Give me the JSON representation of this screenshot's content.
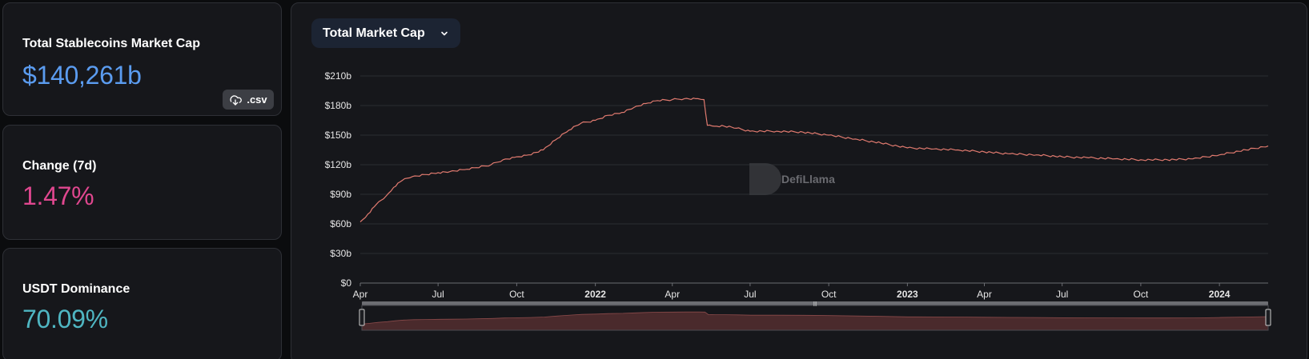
{
  "stats": {
    "market_cap": {
      "label": "Total Stablecoins Market Cap",
      "value": "$140,261b"
    },
    "change": {
      "label": "Change (7d)",
      "value": "1.47%"
    },
    "dominance": {
      "label": "USDT Dominance",
      "value": "70.09%"
    },
    "csv_button": {
      "label": ".csv",
      "icon": "download-cloud-icon"
    }
  },
  "chart_controls": {
    "metric_select": {
      "label": "Total Market Cap",
      "icon": "chevron-down-icon"
    }
  },
  "watermark": {
    "text": "DefiLlama"
  },
  "colors": {
    "market_cap_value": "#5b9cf0",
    "change_value": "#e0478f",
    "dominance_value": "#4fb6c2",
    "line": "#e07a6f",
    "brush_fill": "#4a2a2c"
  },
  "chart_data": {
    "type": "line",
    "title": "",
    "xlabel": "",
    "ylabel": "",
    "ylim": [
      0,
      210
    ],
    "y_ticks": [
      "$0",
      "$30b",
      "$60b",
      "$90b",
      "$120b",
      "$150b",
      "$180b",
      "$210b"
    ],
    "x_ticks": [
      {
        "label": "Apr",
        "date": "2021-04-01",
        "bold": false
      },
      {
        "label": "Jul",
        "date": "2021-07-01",
        "bold": false
      },
      {
        "label": "Oct",
        "date": "2021-10-01",
        "bold": false
      },
      {
        "label": "2022",
        "date": "2022-01-01",
        "bold": true
      },
      {
        "label": "Apr",
        "date": "2022-04-01",
        "bold": false
      },
      {
        "label": "Jul",
        "date": "2022-07-01",
        "bold": false
      },
      {
        "label": "Oct",
        "date": "2022-10-01",
        "bold": false
      },
      {
        "label": "2023",
        "date": "2023-01-01",
        "bold": true
      },
      {
        "label": "Apr",
        "date": "2023-04-01",
        "bold": false
      },
      {
        "label": "Jul",
        "date": "2023-07-01",
        "bold": false
      },
      {
        "label": "Oct",
        "date": "2023-10-01",
        "bold": false
      },
      {
        "label": "2024",
        "date": "2024-01-01",
        "bold": true
      }
    ],
    "x_range": [
      "2021-04-01",
      "2024-02-27"
    ],
    "grid": true,
    "series": [
      {
        "name": "",
        "x": [
          "2021-04-01",
          "2021-04-10",
          "2021-04-20",
          "2021-05-01",
          "2021-05-10",
          "2021-05-20",
          "2021-06-01",
          "2021-06-15",
          "2021-07-01",
          "2021-07-15",
          "2021-08-01",
          "2021-08-15",
          "2021-09-01",
          "2021-09-15",
          "2021-10-01",
          "2021-10-15",
          "2021-11-01",
          "2021-11-15",
          "2021-12-01",
          "2021-12-15",
          "2022-01-01",
          "2022-01-15",
          "2022-02-01",
          "2022-02-15",
          "2022-03-01",
          "2022-03-15",
          "2022-04-01",
          "2022-04-15",
          "2022-05-01",
          "2022-05-08",
          "2022-05-12",
          "2022-05-20",
          "2022-06-01",
          "2022-06-15",
          "2022-07-01",
          "2022-08-01",
          "2022-09-01",
          "2022-10-01",
          "2022-11-01",
          "2022-12-01",
          "2023-01-01",
          "2023-02-01",
          "2023-03-01",
          "2023-04-01",
          "2023-05-01",
          "2023-06-01",
          "2023-07-01",
          "2023-08-01",
          "2023-09-01",
          "2023-10-01",
          "2023-11-01",
          "2023-12-01",
          "2024-01-01",
          "2024-02-01",
          "2024-02-27"
        ],
        "values": [
          62,
          70,
          80,
          88,
          97,
          104,
          108,
          110,
          112,
          113,
          115,
          117,
          120,
          125,
          128,
          130,
          135,
          145,
          155,
          162,
          165,
          170,
          173,
          178,
          182,
          185,
          186,
          187,
          187,
          186,
          160,
          159,
          159,
          157,
          154,
          154,
          153,
          150,
          146,
          142,
          137,
          136,
          135,
          133,
          131,
          130,
          128,
          127,
          126,
          125,
          125,
          126,
          130,
          135,
          139
        ]
      }
    ]
  }
}
